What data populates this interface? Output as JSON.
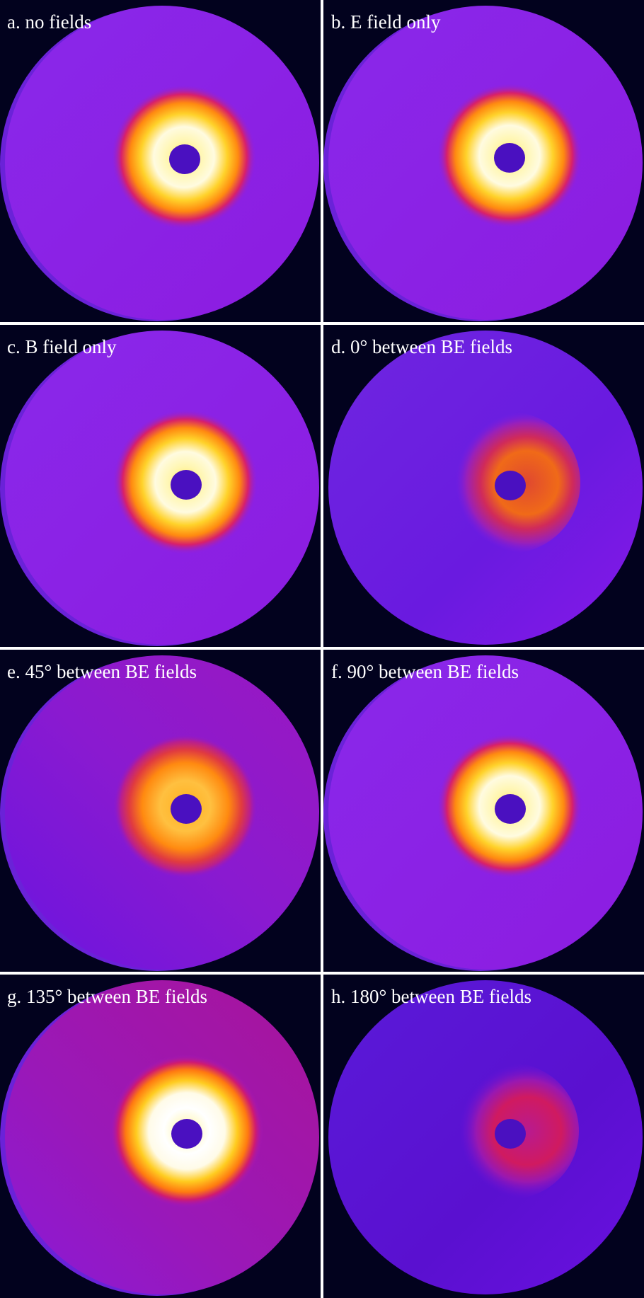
{
  "panels": [
    {
      "label": "a. no fields"
    },
    {
      "label": "b. E field only"
    },
    {
      "label": "c. B field only"
    },
    {
      "label": "d. 0° between BE fields"
    },
    {
      "label": "e. 45° between BE fields"
    },
    {
      "label": "f. 90° between BE fields"
    },
    {
      "label": "g. 135° between BE fields"
    },
    {
      "label": "h. 180° between BE fields"
    }
  ]
}
